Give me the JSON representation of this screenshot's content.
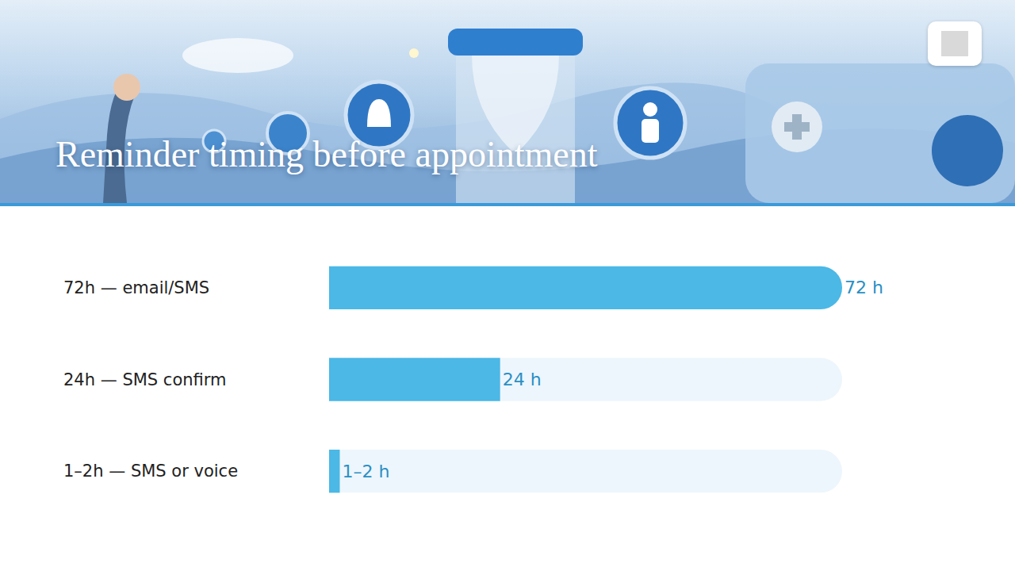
{
  "chart_data": {
    "type": "bar",
    "orientation": "horizontal",
    "title": "Reminder timing before appointment",
    "categories": [
      "72h — email/SMS",
      "24h — SMS confirm",
      "1–2h — SMS or voice"
    ],
    "values": [
      72,
      24,
      1.5
    ],
    "value_labels": [
      "72 h",
      "24 h",
      "1–2 h"
    ],
    "data_labels": true,
    "color": "#4bb8e6",
    "xlim": [
      0,
      72
    ],
    "grid": false,
    "tick_labels": false
  }
}
